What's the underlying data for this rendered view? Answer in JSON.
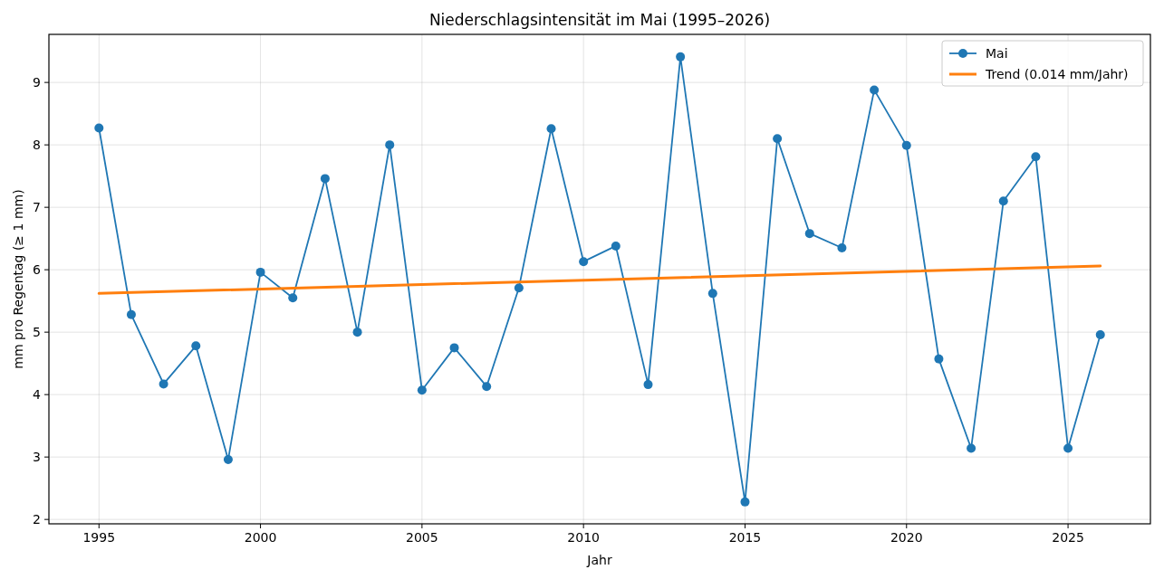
{
  "chart_data": {
    "type": "line",
    "title": "Niederschlagsintensität im Mai (1995–2026)",
    "xlabel": "Jahr",
    "ylabel": "mm pro Regentag (≥ 1 mm)",
    "x": [
      1995,
      1996,
      1997,
      1998,
      1999,
      2000,
      2001,
      2002,
      2003,
      2004,
      2005,
      2006,
      2007,
      2008,
      2009,
      2010,
      2011,
      2012,
      2013,
      2014,
      2015,
      2016,
      2017,
      2018,
      2019,
      2020,
      2021,
      2022,
      2023,
      2024,
      2025,
      2026
    ],
    "series": [
      {
        "name": "Mai",
        "color": "#1f77b4",
        "marker": "circle",
        "values": [
          8.27,
          5.28,
          4.17,
          4.78,
          2.96,
          5.96,
          5.55,
          7.46,
          5.0,
          8.0,
          4.07,
          4.75,
          4.13,
          5.71,
          8.26,
          6.13,
          6.38,
          4.16,
          9.41,
          5.62,
          2.28,
          8.1,
          6.58,
          6.35,
          8.88,
          7.99,
          4.57,
          3.14,
          7.1,
          7.81,
          3.14,
          4.96
        ]
      },
      {
        "name": "Trend (0.014 mm/Jahr)",
        "color": "#ff7f0e",
        "marker": "none",
        "x": [
          1995,
          2026
        ],
        "values": [
          5.62,
          6.06
        ]
      }
    ],
    "xlim": [
      1993.45,
      2027.55
    ],
    "xticks": [
      1995,
      2000,
      2005,
      2010,
      2015,
      2020,
      2025
    ],
    "ylim": [
      1.93,
      9.77
    ],
    "yticks": [
      2,
      3,
      4,
      5,
      6,
      7,
      8,
      9
    ],
    "grid": true,
    "legend": "top right"
  }
}
